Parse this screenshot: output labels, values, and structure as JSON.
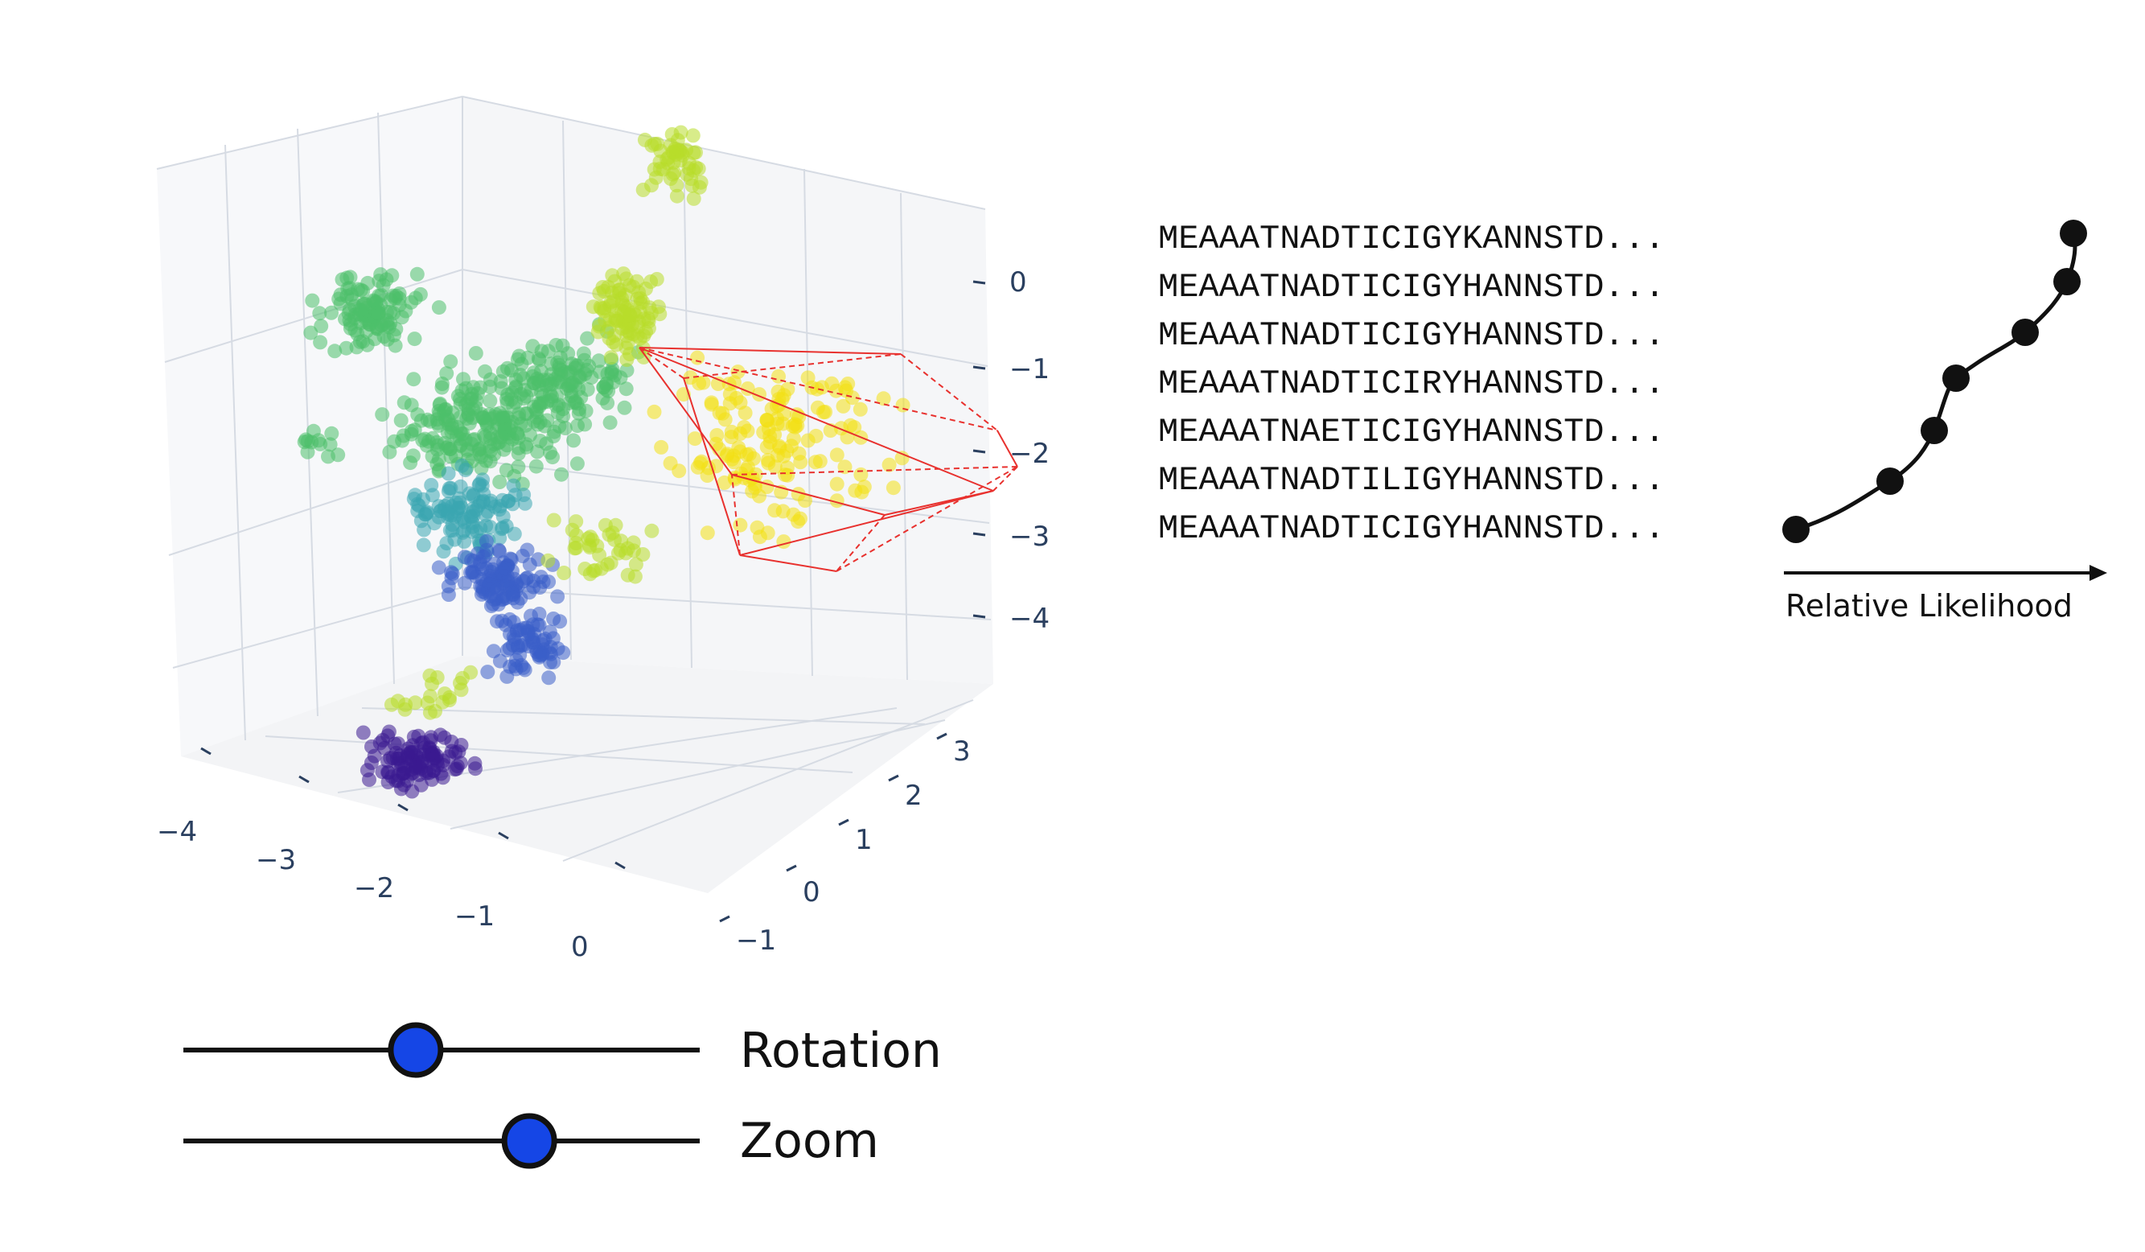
{
  "scatter_plot": {
    "axis_ticks": {
      "z": [
        "0",
        "−1",
        "−2",
        "−3",
        "−4"
      ],
      "x": [
        "−4",
        "−3",
        "−2",
        "−1",
        "0"
      ],
      "y": [
        "3",
        "2",
        "1",
        "0",
        "−1"
      ]
    },
    "colors": {
      "purple": "#3b1a8f",
      "blue": "#3b5fc8",
      "teal": "#3aa6b0",
      "green": "#4cc06a",
      "lime": "#b8dc2a",
      "yellow": "#f2e014",
      "hull": "#e8312e",
      "grid": "#d6dbe3",
      "axis_text": "#2a3f5f"
    }
  },
  "sequences": [
    "MEAAATNADTICIGYKANNSTD...",
    "MEAAATNADTICIGYHANNSTD...",
    "MEAAATNADTICIGYHANNSTD...",
    "MEAAATNADTICIRYHANNSTD...",
    "MEAAATNAETICIGYHANNSTD...",
    "MEAAATNADTILIGYHANNSTD...",
    "MEAAATNADTICIGYHANNSTD..."
  ],
  "likelihood": {
    "axis_label": "Relative Likelihood",
    "point_count": 7
  },
  "controls": {
    "rotation": {
      "label": "Rotation",
      "value": 0.45,
      "knob_color": "#1546e6"
    },
    "zoom": {
      "label": "Zoom",
      "value": 0.67,
      "knob_color": "#1546e6"
    }
  }
}
